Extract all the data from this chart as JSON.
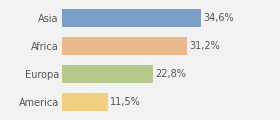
{
  "categories": [
    "Asia",
    "Africa",
    "Europa",
    "America"
  ],
  "values": [
    34.6,
    31.2,
    22.8,
    11.5
  ],
  "labels": [
    "34,6%",
    "31,2%",
    "22,8%",
    "11,5%"
  ],
  "bar_colors": [
    "#7b9fc7",
    "#e8b98a",
    "#b5c98a",
    "#f0d080"
  ],
  "xlim": [
    0,
    46
  ],
  "background_color": "#f2f2f2",
  "bar_height": 0.65,
  "label_fontsize": 7.0,
  "tick_fontsize": 7.0
}
